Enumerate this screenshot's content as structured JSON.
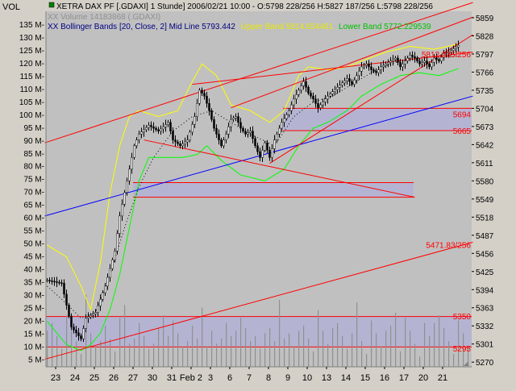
{
  "window": {
    "vol_label": "VOL",
    "header_line1": "XETRA DAX PF [.GDAXI]  1 Stunde]  2006/02/21 10:00 - O:5798 228/256 H:5827 187/256 L:5798 228/256",
    "header_line2": "XX Volume 14183868 (.GDAXI)",
    "bb_label": "XX Bollinger Bands [20, Close, 2] Mid Line 5793.442",
    "bb_upper": "Upper Band 5814.654461",
    "bb_lower": "Lower Band 5772.229539"
  },
  "colors": {
    "plot_bg": "#c0c0c0",
    "bars": "#000000",
    "upper_band": "#ffff00",
    "lower_band": "#00ff00",
    "mid_line": "#000000",
    "trend_red": "#ff0000",
    "trend_blue": "#0000ff",
    "zone_fill": "#b0b0d8",
    "volume": "#909090",
    "level_label": "#ff0000"
  },
  "chart_data": {
    "type": "candlestick",
    "price_axis": {
      "ticks": [
        5859,
        5828,
        5797,
        5766,
        5735,
        5704,
        5673,
        5642,
        5611,
        5580,
        5549,
        5518,
        5487,
        5456,
        5425,
        5394,
        5363,
        5332,
        5301,
        5270
      ],
      "ylim": [
        5262,
        5870
      ]
    },
    "volume_axis": {
      "ticks": [
        "135 M-",
        "130 M-",
        "125 M-",
        "120 M-",
        "115 M-",
        "110 M-",
        "105 M-",
        "100 M-",
        "95 M-",
        "90 M-",
        "85 M-",
        "80 M-",
        "75 M-",
        "70 M-",
        "65 M-",
        "60 M-",
        "55 M-",
        "50 M-",
        "45 M-",
        "40 M-",
        "35 M-",
        "30 M-",
        "25 M-",
        "20 M-",
        "15 M-",
        "10 M-",
        "5 M-"
      ],
      "values_m": [
        135,
        130,
        125,
        120,
        115,
        110,
        105,
        100,
        95,
        90,
        85,
        80,
        75,
        70,
        65,
        60,
        55,
        50,
        45,
        40,
        35,
        30,
        25,
        20,
        15,
        10,
        5
      ],
      "ylim_m": [
        2,
        140
      ]
    },
    "x_labels": [
      "23",
      "24",
      "25",
      "26",
      "27",
      "30",
      "31",
      "Feb 2",
      "3",
      "6",
      "7",
      "8",
      "9",
      "10",
      "13",
      "14",
      "15",
      "16",
      "17",
      "20",
      "21"
    ],
    "x_label_slots": [
      4,
      12,
      20,
      28,
      36,
      44,
      52,
      60,
      68,
      76,
      84,
      92,
      100,
      108,
      116,
      124,
      132,
      140,
      148,
      156,
      164
    ],
    "n_slots": 176,
    "level_labels": [
      {
        "text": "5812.235/256",
        "price": 5797
      },
      {
        "text": "5694",
        "price": 5694
      },
      {
        "text": "5665",
        "price": 5666
      },
      {
        "text": "5471.83/256",
        "price": 5471
      },
      {
        "text": "5350",
        "price": 5349
      },
      {
        "text": "5295",
        "price": 5294
      }
    ],
    "anchors": [
      [
        0,
        5410
      ],
      [
        6,
        5405
      ],
      [
        10,
        5330
      ],
      [
        14,
        5310
      ],
      [
        16,
        5345
      ],
      [
        20,
        5355
      ],
      [
        24,
        5400
      ],
      [
        28,
        5460
      ],
      [
        30,
        5520
      ],
      [
        33,
        5580
      ],
      [
        36,
        5640
      ],
      [
        38,
        5660
      ],
      [
        42,
        5675
      ],
      [
        46,
        5665
      ],
      [
        50,
        5680
      ],
      [
        52,
        5650
      ],
      [
        55,
        5640
      ],
      [
        58,
        5650
      ],
      [
        61,
        5690
      ],
      [
        63,
        5735
      ],
      [
        65,
        5725
      ],
      [
        67,
        5700
      ],
      [
        69,
        5670
      ],
      [
        72,
        5640
      ],
      [
        74,
        5660
      ],
      [
        76,
        5685
      ],
      [
        78,
        5690
      ],
      [
        80,
        5670
      ],
      [
        82,
        5660
      ],
      [
        84,
        5665
      ],
      [
        86,
        5640
      ],
      [
        88,
        5620
      ],
      [
        90,
        5645
      ],
      [
        92,
        5620
      ],
      [
        94,
        5650
      ],
      [
        97,
        5680
      ],
      [
        100,
        5700
      ],
      [
        102,
        5720
      ],
      [
        104,
        5735
      ],
      [
        106,
        5750
      ],
      [
        108,
        5730
      ],
      [
        110,
        5720
      ],
      [
        112,
        5705
      ],
      [
        114,
        5715
      ],
      [
        116,
        5725
      ],
      [
        120,
        5740
      ],
      [
        124,
        5755
      ],
      [
        126,
        5745
      ],
      [
        128,
        5760
      ],
      [
        130,
        5775
      ],
      [
        132,
        5780
      ],
      [
        134,
        5770
      ],
      [
        136,
        5765
      ],
      [
        138,
        5775
      ],
      [
        140,
        5780
      ],
      [
        142,
        5785
      ],
      [
        144,
        5790
      ],
      [
        146,
        5775
      ],
      [
        148,
        5785
      ],
      [
        150,
        5795
      ],
      [
        152,
        5790
      ],
      [
        154,
        5780
      ],
      [
        156,
        5785
      ],
      [
        158,
        5775
      ],
      [
        160,
        5790
      ],
      [
        162,
        5785
      ],
      [
        164,
        5798
      ],
      [
        166,
        5800
      ],
      [
        170,
        5812
      ]
    ],
    "bands": {
      "upper": [
        [
          0,
          5470
        ],
        [
          8,
          5450
        ],
        [
          14,
          5400
        ],
        [
          18,
          5360
        ],
        [
          22,
          5440
        ],
        [
          26,
          5560
        ],
        [
          30,
          5640
        ],
        [
          34,
          5690
        ],
        [
          38,
          5700
        ],
        [
          46,
          5690
        ],
        [
          54,
          5700
        ],
        [
          60,
          5750
        ],
        [
          64,
          5780
        ],
        [
          70,
          5760
        ],
        [
          76,
          5710
        ],
        [
          84,
          5700
        ],
        [
          92,
          5680
        ],
        [
          98,
          5700
        ],
        [
          104,
          5760
        ],
        [
          108,
          5775
        ],
        [
          116,
          5770
        ],
        [
          124,
          5775
        ],
        [
          130,
          5785
        ],
        [
          140,
          5800
        ],
        [
          150,
          5810
        ],
        [
          160,
          5805
        ],
        [
          170,
          5814
        ]
      ],
      "lower": [
        [
          0,
          5340
        ],
        [
          8,
          5300
        ],
        [
          14,
          5290
        ],
        [
          18,
          5300
        ],
        [
          22,
          5320
        ],
        [
          26,
          5360
        ],
        [
          30,
          5420
        ],
        [
          34,
          5500
        ],
        [
          38,
          5580
        ],
        [
          42,
          5620
        ],
        [
          48,
          5620
        ],
        [
          56,
          5620
        ],
        [
          62,
          5625
        ],
        [
          66,
          5640
        ],
        [
          72,
          5615
        ],
        [
          80,
          5590
        ],
        [
          90,
          5580
        ],
        [
          98,
          5600
        ],
        [
          104,
          5640
        ],
        [
          110,
          5670
        ],
        [
          116,
          5680
        ],
        [
          124,
          5700
        ],
        [
          130,
          5725
        ],
        [
          138,
          5745
        ],
        [
          146,
          5760
        ],
        [
          154,
          5765
        ],
        [
          162,
          5760
        ],
        [
          170,
          5772
        ]
      ],
      "mid": [
        [
          0,
          5400
        ],
        [
          8,
          5370
        ],
        [
          14,
          5345
        ],
        [
          20,
          5355
        ],
        [
          26,
          5420
        ],
        [
          32,
          5500
        ],
        [
          38,
          5570
        ],
        [
          44,
          5620
        ],
        [
          52,
          5665
        ],
        [
          60,
          5690
        ],
        [
          68,
          5700
        ],
        [
          76,
          5680
        ],
        [
          84,
          5660
        ],
        [
          94,
          5640
        ],
        [
          102,
          5690
        ],
        [
          110,
          5715
        ],
        [
          118,
          5725
        ],
        [
          126,
          5745
        ],
        [
          134,
          5765
        ],
        [
          142,
          5780
        ],
        [
          150,
          5790
        ],
        [
          160,
          5792
        ],
        [
          170,
          5793
        ]
      ]
    },
    "trend_lines": [
      {
        "color": "red",
        "points": [
          [
            -1,
            5645
          ],
          [
            176,
            5885
          ]
        ]
      },
      {
        "color": "red",
        "points": [
          [
            -1,
            5275
          ],
          [
            176,
            5475
          ]
        ]
      },
      {
        "color": "blue",
        "points": [
          [
            -1,
            5520
          ],
          [
            176,
            5725
          ]
        ]
      },
      {
        "color": "red",
        "points": [
          [
            60,
            5745
          ],
          [
            176,
            5800
          ]
        ]
      },
      {
        "color": "red",
        "points": [
          [
            76,
            5705
          ],
          [
            176,
            5860
          ]
        ]
      },
      {
        "color": "red",
        "points": [
          [
            92,
            5610
          ],
          [
            176,
            5830
          ]
        ]
      },
      {
        "color": "red",
        "points": [
          [
            40,
            5650
          ],
          [
            152,
            5552
          ]
        ]
      }
    ],
    "zones": [
      {
        "x0": 36,
        "x1": 152,
        "p_top": 5577,
        "p_bot": 5552
      },
      {
        "x0": 98,
        "x1": 176,
        "p_top": 5704,
        "p_bot": 5666
      },
      {
        "x0": 0,
        "x1": 176,
        "p_top": 5348,
        "p_bot": 5296
      }
    ]
  }
}
